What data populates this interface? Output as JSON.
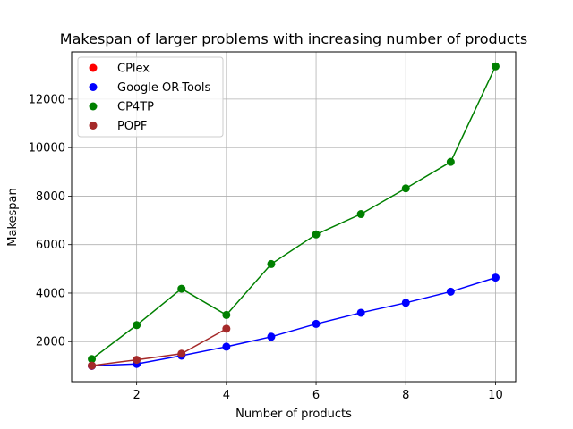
{
  "chart_data": {
    "type": "line",
    "title": "Makespan of larger problems with increasing number of products",
    "xlabel": "Number of products",
    "ylabel": "Makespan",
    "xlim": [
      0.55,
      10.45
    ],
    "ylim": [
      350,
      13950
    ],
    "xticks": [
      2,
      4,
      6,
      8,
      10
    ],
    "yticks": [
      2000,
      4000,
      6000,
      8000,
      10000,
      12000
    ],
    "grid": true,
    "legend_position": "top-left",
    "series": [
      {
        "name": "CPlex",
        "color": "#ff0000",
        "x": [
          1
        ],
        "values": [
          1000
        ]
      },
      {
        "name": "Google OR-Tools",
        "color": "#0000ff",
        "x": [
          1,
          2,
          3,
          4,
          5,
          6,
          7,
          8,
          9,
          10
        ],
        "values": [
          1000,
          1080,
          1420,
          1790,
          2200,
          2730,
          3190,
          3600,
          4060,
          4640
        ]
      },
      {
        "name": "CP4TP",
        "color": "#008000",
        "x": [
          1,
          2,
          3,
          4,
          5,
          6,
          7,
          8,
          9,
          10
        ],
        "values": [
          1280,
          2680,
          4180,
          3100,
          5200,
          6420,
          7260,
          8320,
          9410,
          13350
        ]
      },
      {
        "name": "POPF",
        "color": "#a52a2a",
        "x": [
          1,
          2,
          3,
          4
        ],
        "values": [
          1010,
          1250,
          1500,
          2530
        ]
      }
    ]
  }
}
